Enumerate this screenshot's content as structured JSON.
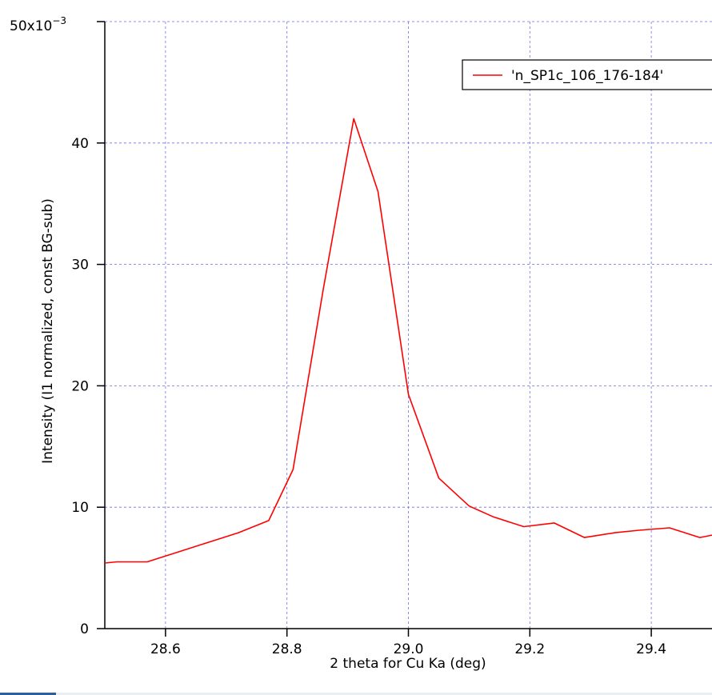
{
  "chart_data": {
    "type": "line",
    "xlabel": "2 theta for Cu Ka  (deg)",
    "ylabel": "Intensity (I1 normalized, const BG-sub)",
    "ymultiplier": "50x10",
    "ymultiplier_exp": "−3",
    "xlim": [
      28.5,
      29.5
    ],
    "ylim": [
      0,
      0.05
    ],
    "x_ticks": [
      28.6,
      28.8,
      29.0,
      29.2,
      29.4
    ],
    "x_tick_labels": [
      "28.6",
      "28.8",
      "29.0",
      "29.2",
      "29.4"
    ],
    "y_ticks": [
      0,
      0.01,
      0.02,
      0.03,
      0.04
    ],
    "y_tick_labels": [
      "0",
      "10",
      "20",
      "30",
      "40"
    ],
    "grid": true,
    "legend_position": "top-right",
    "series": [
      {
        "name": "'n_SP1c_106_176-184'",
        "color": "#ff0000",
        "x": [
          28.5,
          28.52,
          28.55,
          28.57,
          28.62,
          28.67,
          28.72,
          28.77,
          28.81,
          28.86,
          28.91,
          28.95,
          29.0,
          29.05,
          29.1,
          29.14,
          29.19,
          29.24,
          29.29,
          29.34,
          29.38,
          29.43,
          29.48,
          29.5
        ],
        "y": [
          0.0054,
          0.0055,
          0.0055,
          0.0055,
          0.0063,
          0.0071,
          0.0079,
          0.0089,
          0.0131,
          0.028,
          0.042,
          0.036,
          0.0193,
          0.0124,
          0.0101,
          0.0092,
          0.0084,
          0.0087,
          0.0075,
          0.0079,
          0.0081,
          0.0083,
          0.0075,
          0.0077
        ]
      }
    ]
  }
}
